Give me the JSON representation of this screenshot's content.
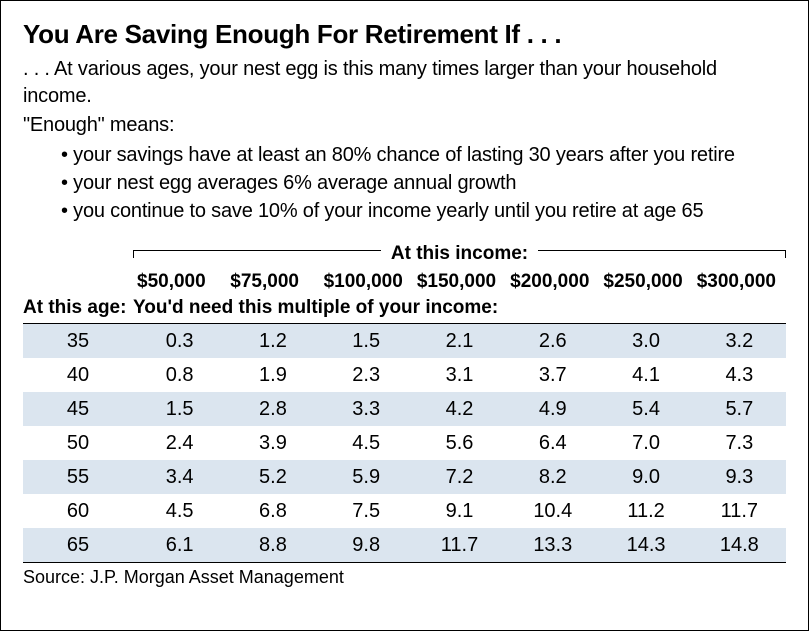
{
  "title": "You Are Saving Enough For Retirement If . . .",
  "subtitle_line1": ". . . At various ages, your nest egg is this many times larger than your household income.",
  "subtitle_line2": "\"Enough\" means:",
  "bullets": [
    "your savings have at least an 80% chance of lasting 30 years after you retire",
    "your nest egg averages 6% average annual growth",
    "you continue to save 10% of your income yearly until you retire at age 65"
  ],
  "income_header_label": "At this income:",
  "age_header_label": "At this age:",
  "multiple_header_label": "You'd need this multiple of your income:",
  "source_label": "Source:  J.P. Morgan Asset Management",
  "table": {
    "type": "table",
    "columns": [
      "$50,000",
      "$75,000",
      "$100,000",
      "$150,000",
      "$200,000",
      "$250,000",
      "$300,000"
    ],
    "ages": [
      "35",
      "40",
      "45",
      "50",
      "55",
      "60",
      "65"
    ],
    "rows": [
      [
        "0.3",
        "1.2",
        "1.5",
        "2.1",
        "2.6",
        "3.0",
        "3.2"
      ],
      [
        "0.8",
        "1.9",
        "2.3",
        "3.1",
        "3.7",
        "4.1",
        "4.3"
      ],
      [
        "1.5",
        "2.8",
        "3.3",
        "4.2",
        "4.9",
        "5.4",
        "5.7"
      ],
      [
        "2.4",
        "3.9",
        "4.5",
        "5.6",
        "6.4",
        "7.0",
        "7.3"
      ],
      [
        "3.4",
        "5.2",
        "5.9",
        "7.2",
        "8.2",
        "9.0",
        "9.3"
      ],
      [
        "4.5",
        "6.8",
        "7.5",
        "9.1",
        "10.4",
        "11.2",
        "11.7"
      ],
      [
        "6.1",
        "8.8",
        "9.8",
        "11.7",
        "13.3",
        "14.3",
        "14.8"
      ]
    ],
    "stripe_color": "#dbe5ef",
    "background_color": "#ffffff",
    "border_color": "#000000",
    "header_fontsize": 19,
    "cell_fontsize": 20,
    "font_family": "Arial Narrow"
  }
}
